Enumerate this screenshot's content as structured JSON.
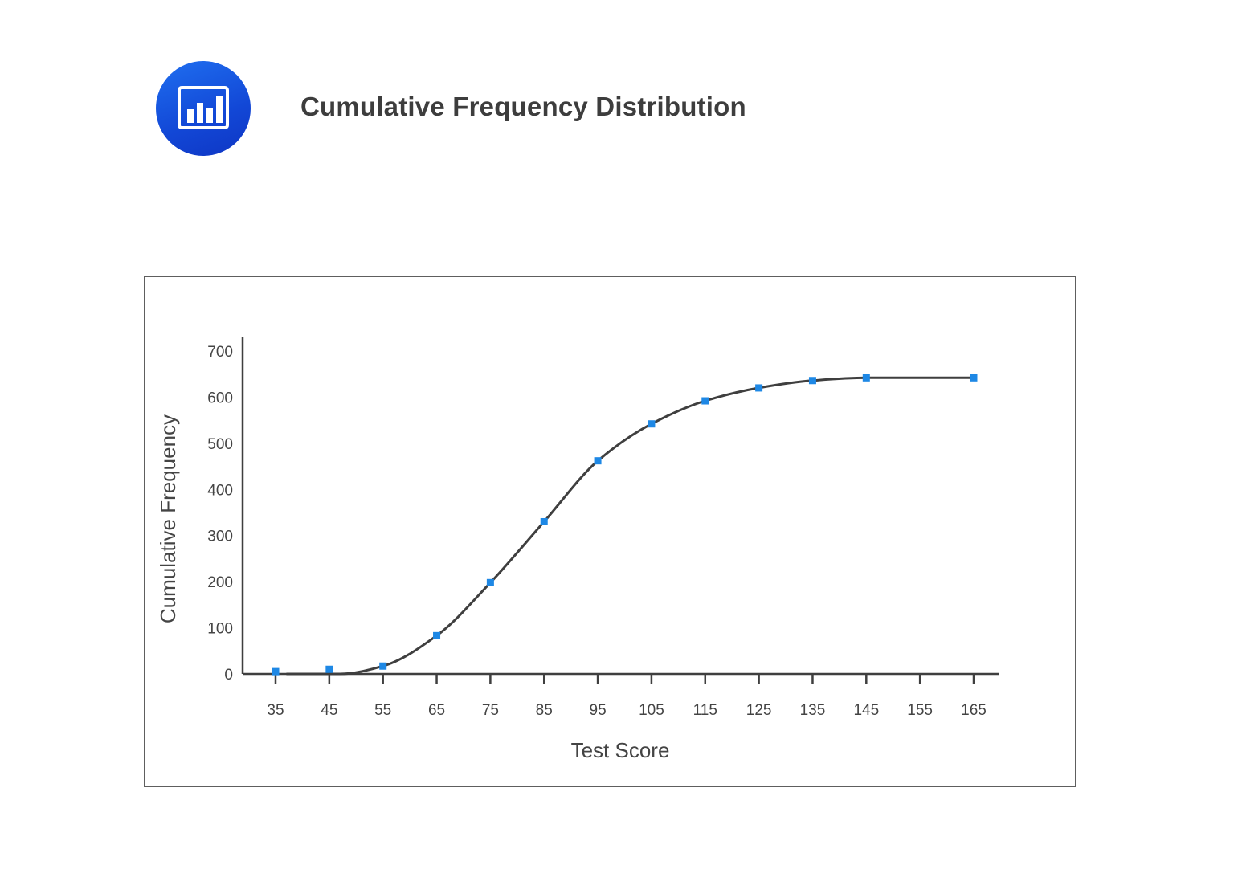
{
  "header": {
    "icon": "bar-chart-icon",
    "icon_color": "#1a56e0",
    "title": "Cumulative Frequency Distribution"
  },
  "chart_data": {
    "type": "line",
    "title": "Cumulative Frequency Distribution",
    "xlabel": "Test Score",
    "ylabel": "Cumulative Frequency",
    "x": [
      35,
      45,
      55,
      65,
      75,
      85,
      95,
      105,
      115,
      125,
      135,
      145,
      165
    ],
    "series": [
      {
        "values": [
          5,
          10,
          17,
          83,
          198,
          330,
          462,
          542,
          592,
          620,
          636,
          642,
          642
        ]
      }
    ],
    "x_ticks": [
      "35",
      "45",
      "55",
      "65",
      "75",
      "85",
      "95",
      "105",
      "115",
      "125",
      "135",
      "145",
      "155",
      "165"
    ],
    "y_ticks": [
      "0",
      "100",
      "200",
      "300",
      "400",
      "500",
      "600",
      "700"
    ],
    "xlim": [
      35,
      165
    ],
    "ylim": [
      0,
      700
    ],
    "grid": false,
    "legend": "none",
    "line_color": "#3f3f3f",
    "marker_color": "#1e88e5",
    "smooth_curve": true
  }
}
